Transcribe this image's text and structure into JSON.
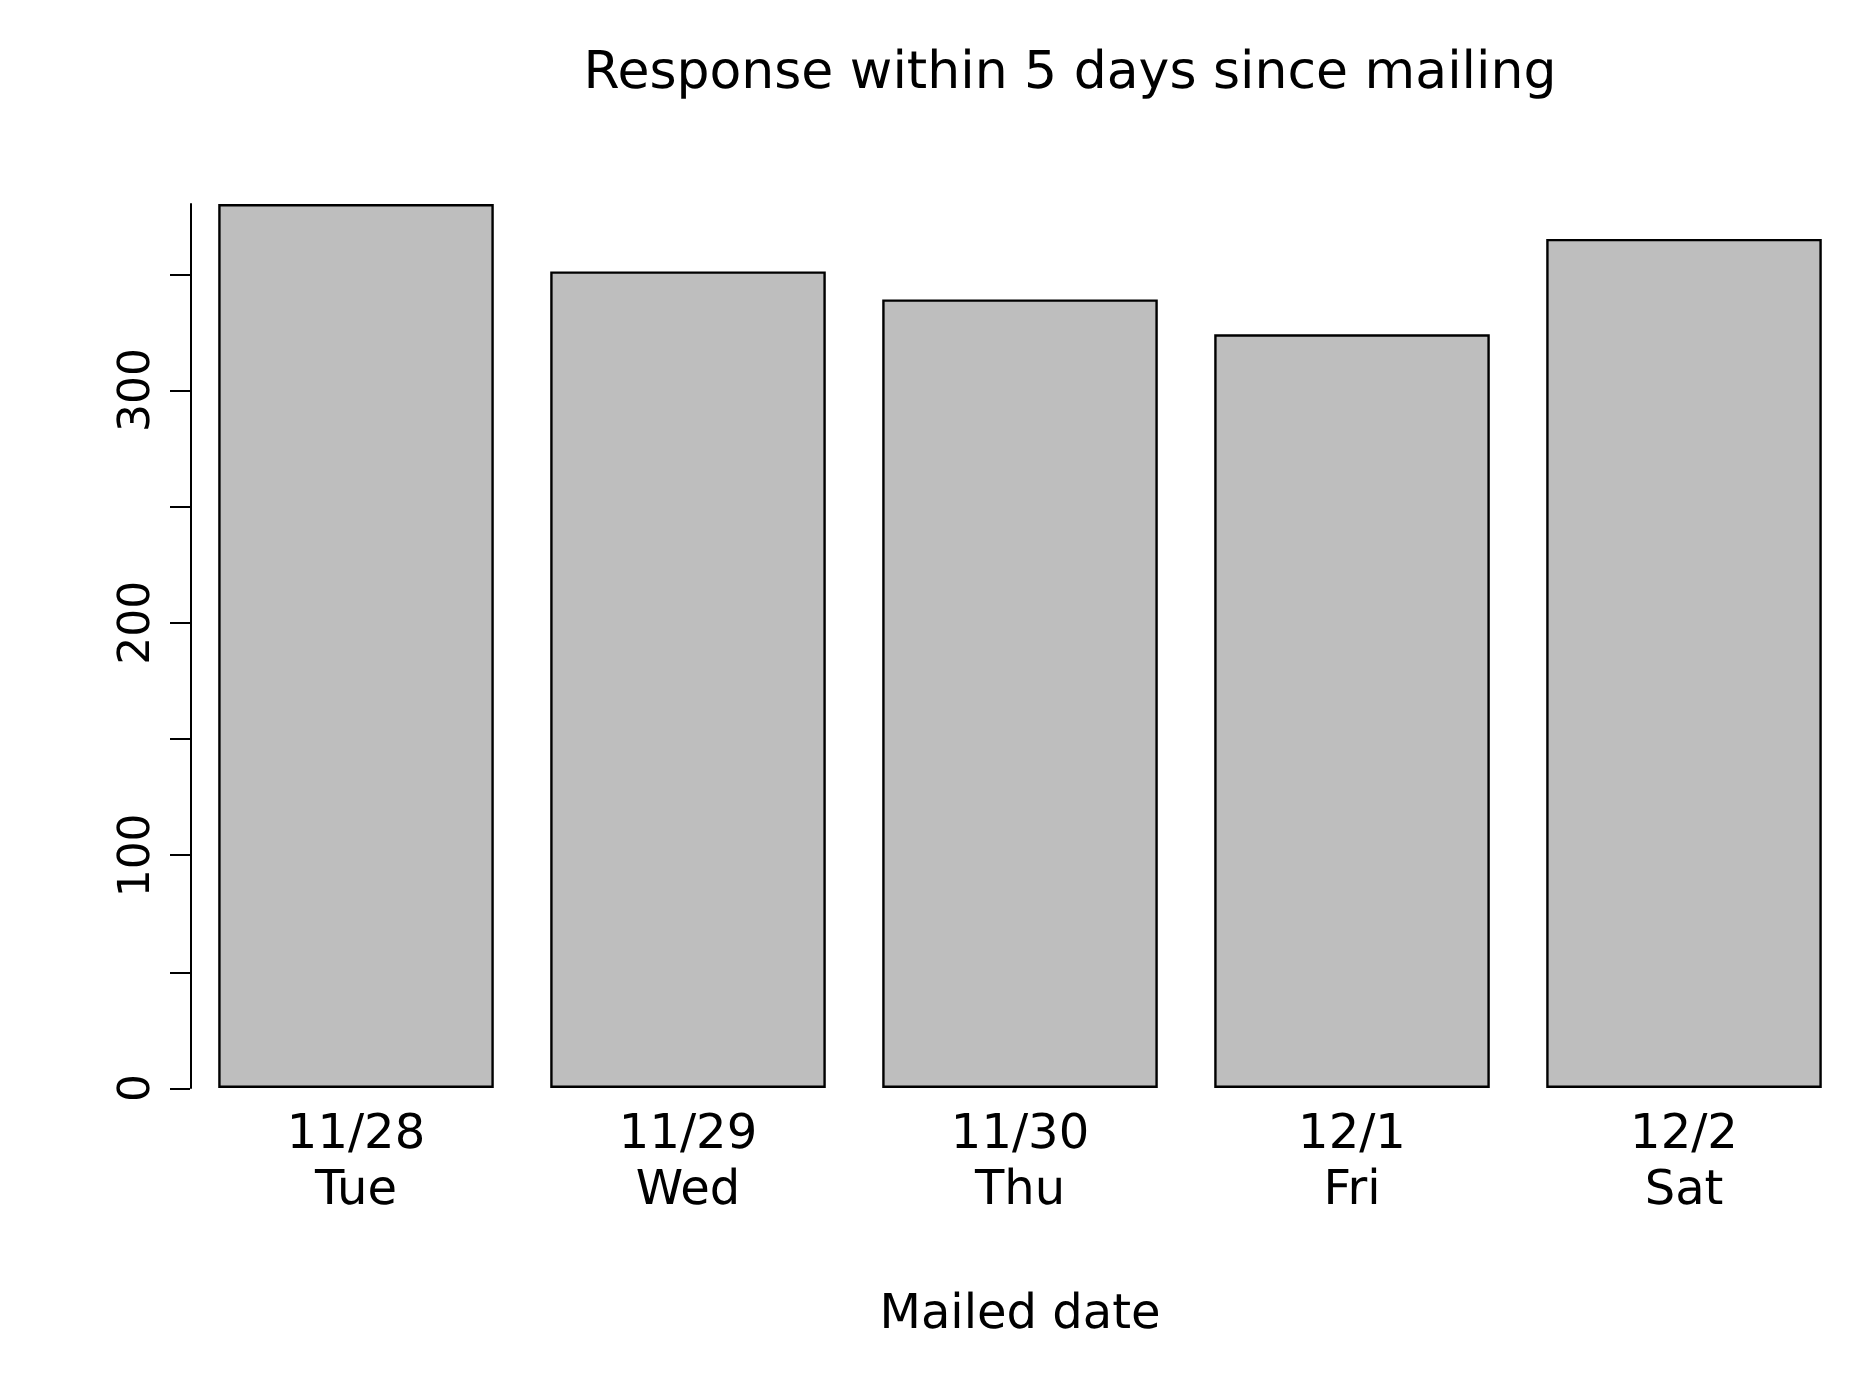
{
  "chart_data": {
    "type": "bar",
    "title": "Response within 5 days since mailing",
    "xlabel": "Mailed date",
    "categories": [
      "11/28\nTue",
      "11/29\nWed",
      "11/30\nThu",
      "12/1\nFri",
      "12/2\nSat"
    ],
    "values": [
      380,
      351,
      339,
      324,
      365
    ],
    "color": "#bebebe",
    "ylim": [
      0,
      380
    ],
    "yticks": [
      0,
      {
        "value": 50,
        "label": null
      },
      100,
      {
        "value": 150,
        "label": null
      },
      200,
      {
        "value": 250,
        "label": null
      },
      300,
      {
        "value": 350,
        "label": null
      }
    ],
    "grid": false
  }
}
